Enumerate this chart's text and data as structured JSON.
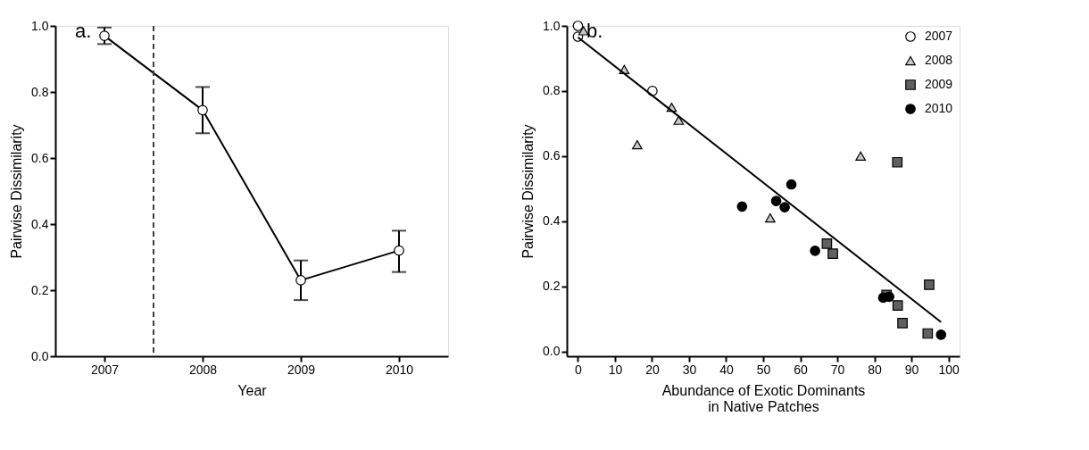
{
  "chart_data": [
    {
      "type": "line",
      "annotations": [
        "a."
      ],
      "xlabel": "Year",
      "ylabel": "Pairwise Dissimilarity",
      "marker": "circle",
      "line_style": "solid",
      "grid": false,
      "legend": false,
      "x": [
        2007,
        2008,
        2009,
        2010
      ],
      "xlim": [
        2006.5,
        2010.5
      ],
      "xticks": [
        2007,
        2008,
        2009,
        2010
      ],
      "ylim": [
        0,
        1
      ],
      "yticks": [
        {
          "value": 0,
          "label": "0.0"
        },
        {
          "value": 0.2,
          "label": "0.2"
        },
        {
          "value": 0.4,
          "label": "0.4"
        },
        {
          "value": 0.6,
          "label": "0.6"
        },
        {
          "value": 0.8,
          "label": "0.8"
        },
        {
          "value": 1,
          "label": "1.0"
        }
      ],
      "series": [
        {
          "color": "#000000",
          "values": [
            0.97,
            0.745,
            0.23,
            0.32
          ],
          "errors": [
            [
              0.945,
              0.995
            ],
            [
              0.675,
              0.815
            ],
            [
              0.17,
              0.29
            ],
            [
              0.255,
              0.38
            ]
          ]
        }
      ],
      "ref_lines": [
        {
          "axis": "x",
          "value": 2007.5,
          "color": "#404040",
          "line_style": "dashed"
        }
      ]
    },
    {
      "type": "scatter",
      "annotations": [
        "b."
      ],
      "xlabel": "Abundance of Exotic Dominants\nin Native Patches",
      "ylabel": "Pairwise Dissimilarity",
      "grid": false,
      "legend": "top right",
      "xlim": [
        -3,
        103
      ],
      "xticks": [
        0,
        10,
        20,
        30,
        40,
        50,
        60,
        70,
        80,
        90,
        100
      ],
      "ylim": [
        -0.015,
        1
      ],
      "yticks": [
        {
          "value": 0,
          "label": "0.0"
        },
        {
          "value": 0.2,
          "label": "0.2"
        },
        {
          "value": 0.4,
          "label": "0.4"
        },
        {
          "value": 0.6,
          "label": "0.6"
        },
        {
          "value": 0.8,
          "label": "0.8"
        },
        {
          "value": 1,
          "label": "1.0"
        }
      ],
      "series": [
        {
          "name": "2007",
          "marker": "circle",
          "color": "#ffffff",
          "x": [
            0,
            0,
            20.1
          ],
          "values": [
            1.0,
            0.967,
            0.8
          ]
        },
        {
          "name": "2008",
          "marker": "triangle",
          "color": "#c8c8c8",
          "x": [
            1.5,
            12.5,
            16,
            25.3,
            27.2,
            51.9,
            76.3
          ],
          "values": [
            0.985,
            0.866,
            0.635,
            0.75,
            0.71,
            0.41,
            0.6
          ]
        },
        {
          "name": "2009",
          "marker": "square",
          "color": "#606060",
          "x": [
            86.2,
            67.2,
            68.8,
            83.3,
            86.3,
            87.6,
            94.4,
            94.8
          ],
          "values": [
            0.581,
            0.331,
            0.3,
            0.173,
            0.141,
            0.087,
            0.055,
            0.205
          ]
        },
        {
          "name": "2010",
          "marker": "circle",
          "color": "#000000",
          "x": [
            44.3,
            53.5,
            55.8,
            57.6,
            64,
            82.4,
            84,
            98
          ],
          "values": [
            0.445,
            0.462,
            0.443,
            0.513,
            0.309,
            0.165,
            0.168,
            0.051
          ]
        },
        {
          "type": "line",
          "marker": "none",
          "color": "#000000",
          "x": [
            0,
            98
          ],
          "values": [
            0.965,
            0.09
          ]
        }
      ]
    }
  ]
}
